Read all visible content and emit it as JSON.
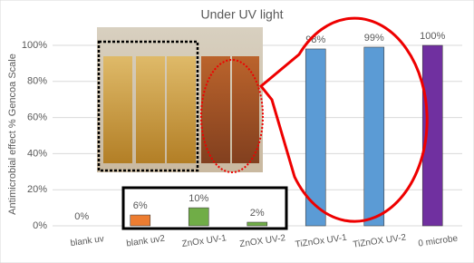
{
  "chart_data": {
    "type": "bar",
    "title": "Under UV light",
    "y_label": "Antimicrobial effect % Gencoa Scale",
    "categories": [
      "blank uv",
      "blank uv2",
      "ZnOx UV-1",
      "ZnOX UV-2",
      "TiZnOx UV-1",
      "TiZnOX UV-2",
      "0 microbe"
    ],
    "values": [
      0,
      6,
      10,
      2,
      98,
      99,
      100
    ],
    "value_labels": [
      "0%",
      "6%",
      "10%",
      "2%",
      "98%",
      "99%",
      "100%"
    ],
    "colors": [
      "#ed7d31",
      "#ed7d31",
      "#70ad47",
      "#70ad47",
      "#5b9bd5",
      "#5b9bd5",
      "#7030a0"
    ],
    "ylim": [
      0,
      100
    ],
    "yticks": [
      {
        "value": 0,
        "label": "0%"
      },
      {
        "value": 20,
        "label": "20%"
      },
      {
        "value": 40,
        "label": "40%"
      },
      {
        "value": 60,
        "label": "60%"
      },
      {
        "value": 80,
        "label": "80%"
      },
      {
        "value": 100,
        "label": "100%"
      }
    ],
    "grid": true
  }
}
